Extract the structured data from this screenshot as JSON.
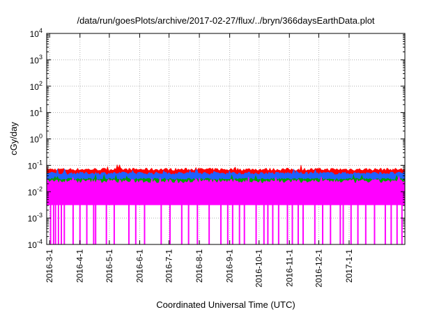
{
  "chart_data": {
    "type": "area",
    "title": "/data/run/goesPlots/archive/2017-02-27/flux/../bryn/366daysEarthData.plot",
    "xlabel": "Coordinated Universal Time (UTC)",
    "ylabel": "cGy/day",
    "yscale": "log",
    "ylim": [
      0.0001,
      10000
    ],
    "xlim": [
      "2016-02-27",
      "2017-02-27"
    ],
    "grid": true,
    "y_ticks": [
      {
        "base": "10",
        "exp": "-4"
      },
      {
        "base": "10",
        "exp": "-3"
      },
      {
        "base": "10",
        "exp": "-2"
      },
      {
        "base": "10",
        "exp": "-1"
      },
      {
        "base": "10",
        "exp": "0"
      },
      {
        "base": "10",
        "exp": "1"
      },
      {
        "base": "10",
        "exp": "2"
      },
      {
        "base": "10",
        "exp": "3"
      },
      {
        "base": "10",
        "exp": "4"
      }
    ],
    "x_ticks": [
      {
        "label": "2016-3-1",
        "date": "2016-03-01"
      },
      {
        "label": "2016-4-1",
        "date": "2016-04-01"
      },
      {
        "label": "2016-5-1",
        "date": "2016-05-01"
      },
      {
        "label": "2016-6-1",
        "date": "2016-06-01"
      },
      {
        "label": "2016-7-1",
        "date": "2016-07-01"
      },
      {
        "label": "2016-8-1",
        "date": "2016-08-01"
      },
      {
        "label": "2016-9-1",
        "date": "2016-09-01"
      },
      {
        "label": "2016-10-1",
        "date": "2016-10-01"
      },
      {
        "label": "2016-11-1",
        "date": "2016-11-01"
      },
      {
        "label": "2016-12-1",
        "date": "2016-12-01"
      },
      {
        "label": "2017-1-1",
        "date": "2017-01-01"
      }
    ],
    "series": [
      {
        "color": "#ff0000",
        "values": [
          0.07,
          0.065,
          0.06
        ]
      },
      {
        "color": "#2060ff",
        "values": [
          0.05,
          0.045,
          0.04
        ]
      },
      {
        "color": "#00a000",
        "values": [
          0.03,
          0.03,
          0.028
        ]
      },
      {
        "color": "#ff00ff",
        "values": [
          0.025,
          0.02,
          0.0035
        ]
      }
    ],
    "magenta_dropouts_to_floor": [
      "2016-03-02",
      "2016-03-05",
      "2016-03-07",
      "2016-03-10",
      "2016-03-13",
      "2016-03-16",
      "2016-03-25",
      "2016-04-01",
      "2016-04-08",
      "2016-04-15",
      "2016-04-17",
      "2016-04-28",
      "2016-05-06",
      "2016-05-21",
      "2016-05-28",
      "2016-06-06",
      "2016-06-23",
      "2016-07-02",
      "2016-07-14",
      "2016-07-21",
      "2016-07-30",
      "2016-08-11",
      "2016-08-23",
      "2016-08-30",
      "2016-09-04",
      "2016-09-11",
      "2016-09-16",
      "2016-09-28",
      "2016-10-06",
      "2016-10-10",
      "2016-10-15",
      "2016-10-21",
      "2016-10-30",
      "2016-11-04",
      "2016-11-10",
      "2016-11-15",
      "2016-11-27",
      "2016-12-05",
      "2016-12-13",
      "2016-12-23",
      "2016-12-26",
      "2017-01-03",
      "2017-01-10",
      "2017-01-18",
      "2017-01-27",
      "2017-02-07",
      "2017-02-13",
      "2017-02-19",
      "2017-02-24"
    ]
  }
}
